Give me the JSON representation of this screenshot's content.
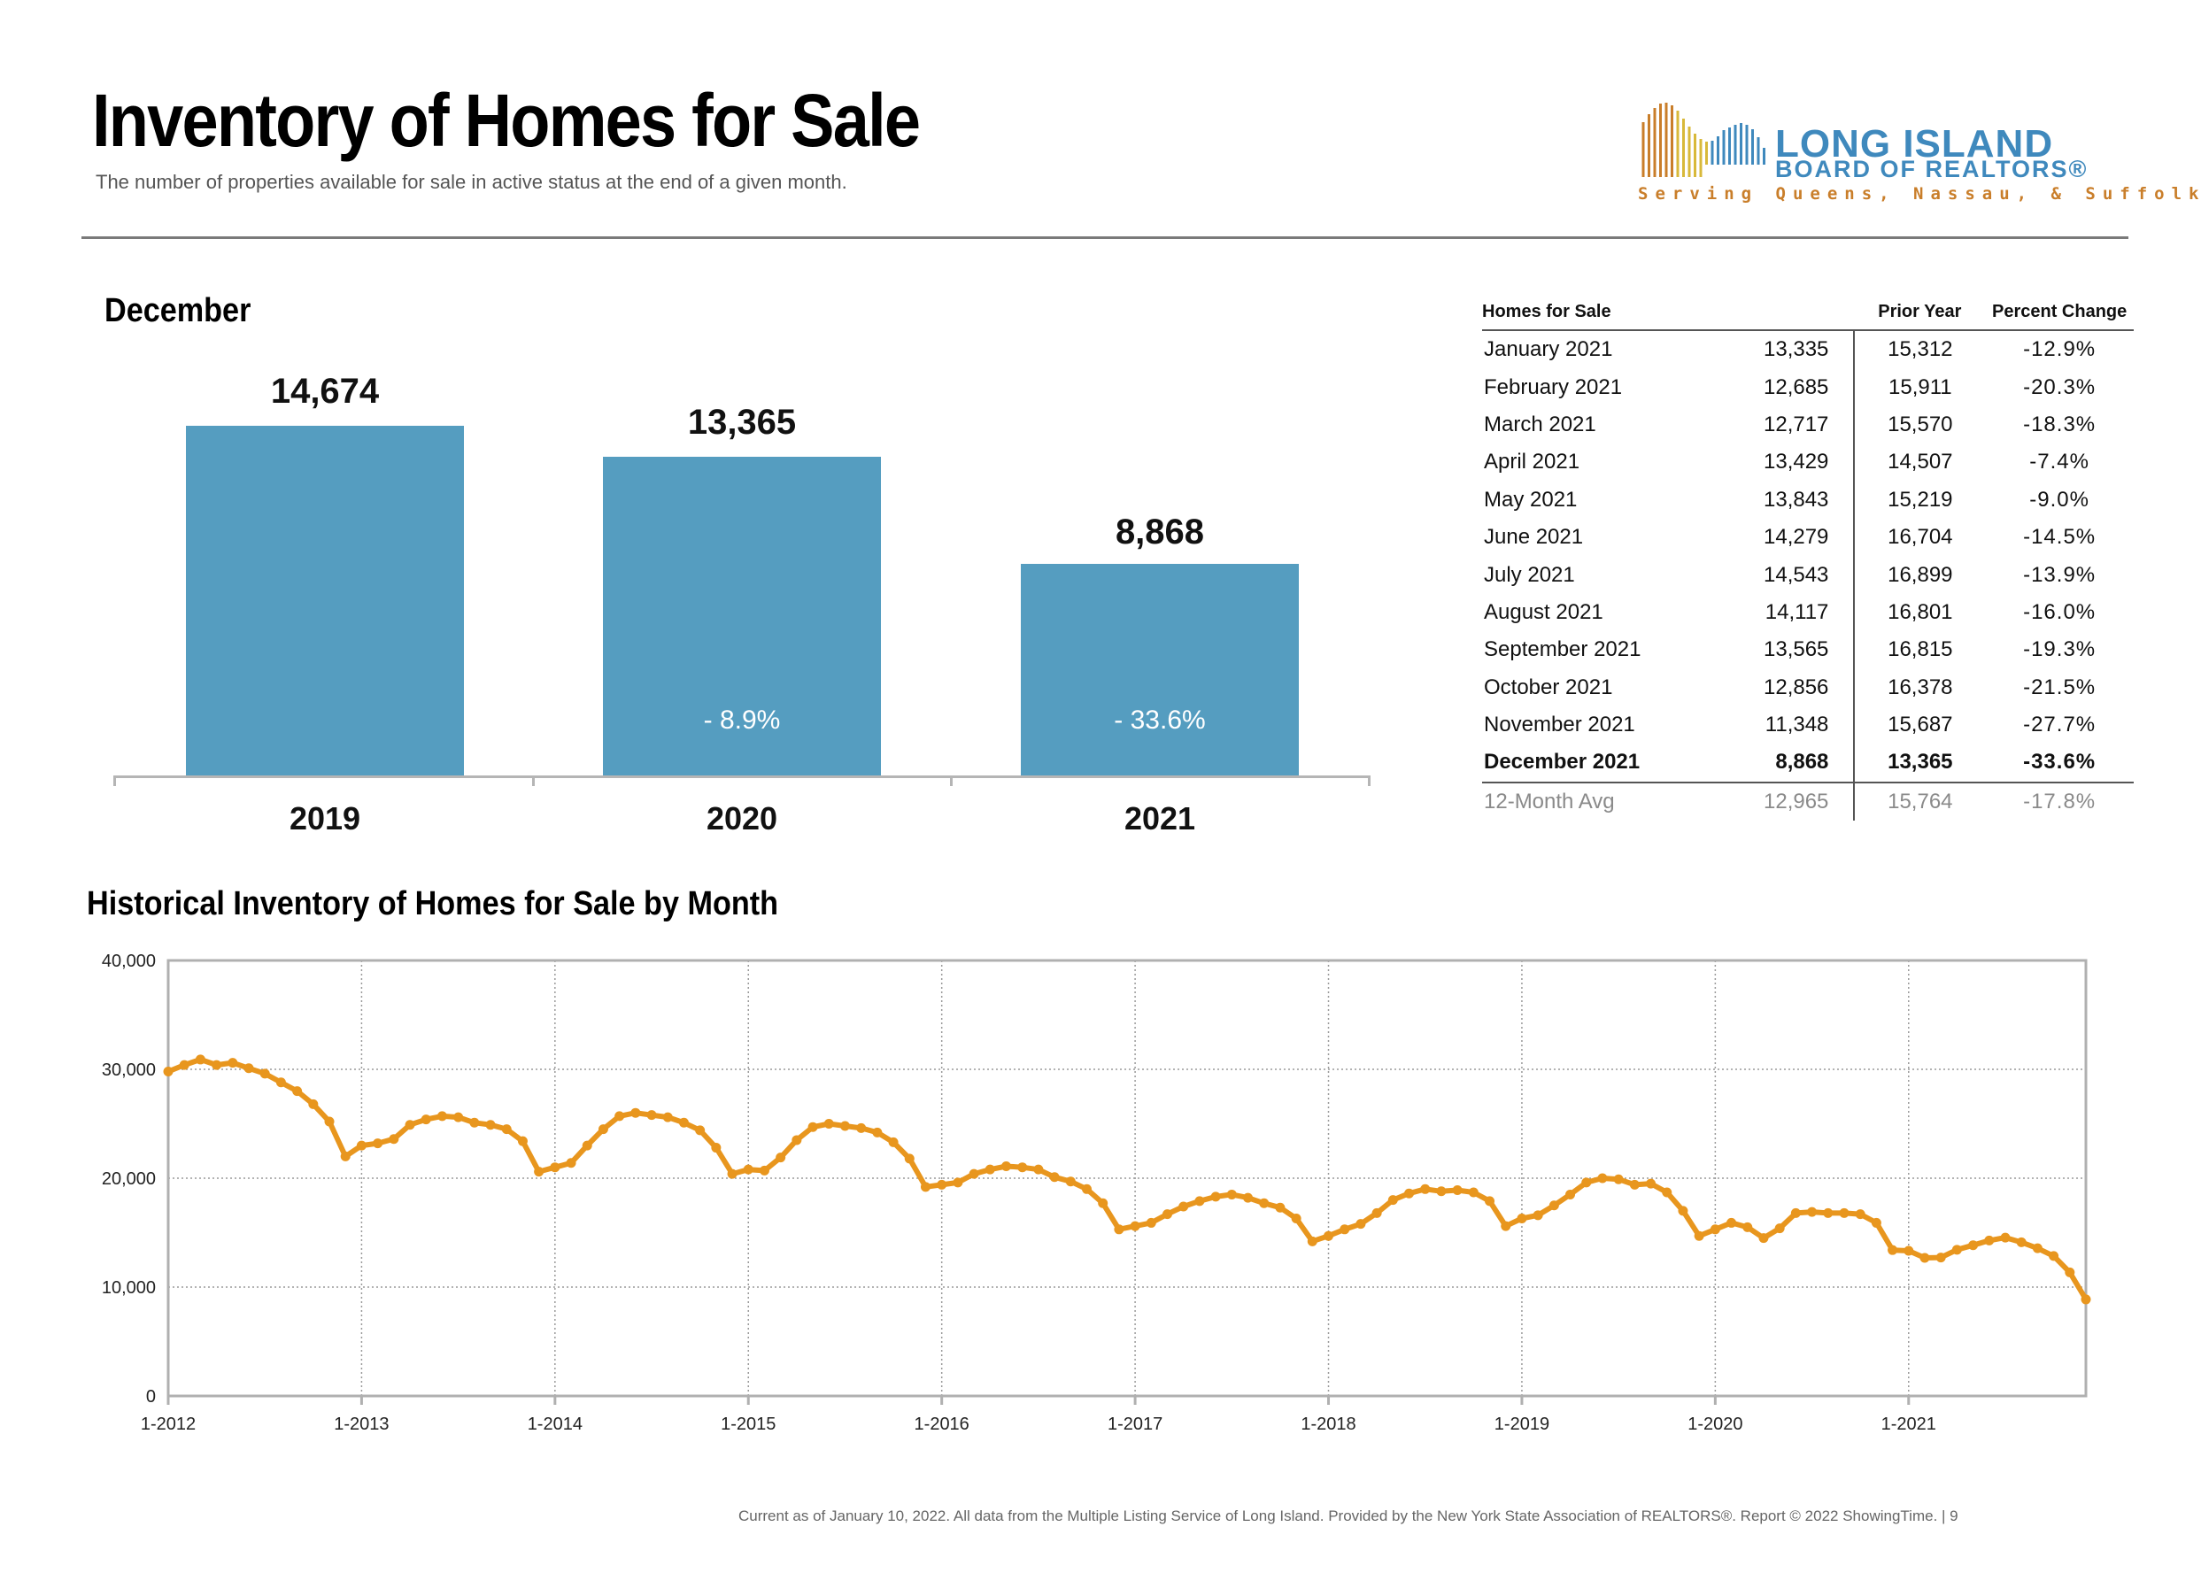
{
  "header": {
    "title": "Inventory of Homes for Sale",
    "subtitle": "The number of properties available for sale in active status at the end of a given month."
  },
  "logo": {
    "line1": "LONG ISLAND",
    "line2": "BOARD OF REALTORS®",
    "line3": "Serving Queens, Nassau, & Suffolk",
    "colors": {
      "blue": "#3f89bd",
      "gold": "#c97e2a",
      "yellow": "#d8b93a"
    }
  },
  "december": {
    "title": "December",
    "bars": [
      {
        "year": "2019",
        "value_label": "14,674",
        "change": ""
      },
      {
        "year": "2020",
        "value_label": "13,365",
        "change": "- 8.9%"
      },
      {
        "year": "2021",
        "value_label": "8,868",
        "change": "- 33.6%"
      }
    ],
    "bar_color": "#559dc0"
  },
  "table": {
    "headers": [
      "Homes for Sale",
      "",
      "Prior Year",
      "Percent Change"
    ],
    "rows": [
      {
        "label": "January 2021",
        "value": "13,335",
        "prior": "15,312",
        "pct": "-12.9%"
      },
      {
        "label": "February 2021",
        "value": "12,685",
        "prior": "15,911",
        "pct": "-20.3%"
      },
      {
        "label": "March 2021",
        "value": "12,717",
        "prior": "15,570",
        "pct": "-18.3%"
      },
      {
        "label": "April 2021",
        "value": "13,429",
        "prior": "14,507",
        "pct": "-7.4%"
      },
      {
        "label": "May 2021",
        "value": "13,843",
        "prior": "15,219",
        "pct": "-9.0%"
      },
      {
        "label": "June 2021",
        "value": "14,279",
        "prior": "16,704",
        "pct": "-14.5%"
      },
      {
        "label": "July 2021",
        "value": "14,543",
        "prior": "16,899",
        "pct": "-13.9%"
      },
      {
        "label": "August 2021",
        "value": "14,117",
        "prior": "16,801",
        "pct": "-16.0%"
      },
      {
        "label": "September 2021",
        "value": "13,565",
        "prior": "16,815",
        "pct": "-19.3%"
      },
      {
        "label": "October 2021",
        "value": "12,856",
        "prior": "16,378",
        "pct": "-21.5%"
      },
      {
        "label": "November 2021",
        "value": "11,348",
        "prior": "15,687",
        "pct": "-27.7%"
      },
      {
        "label": "December 2021",
        "value": "8,868",
        "prior": "13,365",
        "pct": "-33.6%"
      }
    ],
    "avg": {
      "label": "12-Month Avg",
      "value": "12,965",
      "prior": "15,764",
      "pct": "-17.8%"
    }
  },
  "historical": {
    "title": "Historical Inventory of Homes for Sale by Month"
  },
  "chart_data": [
    {
      "type": "bar",
      "title": "December",
      "categories": [
        "2019",
        "2020",
        "2021"
      ],
      "values": [
        14674,
        13365,
        8868
      ],
      "data_labels": [
        "14,674",
        "13,365",
        "8,868"
      ],
      "change_labels": [
        "",
        "- 8.9%",
        "- 33.6%"
      ],
      "color": "#559dc0"
    },
    {
      "type": "line",
      "title": "Historical Inventory of Homes for Sale by Month",
      "x_start": "1-2012",
      "x_tick_labels": [
        "1-2012",
        "1-2013",
        "1-2014",
        "1-2015",
        "1-2016",
        "1-2017",
        "1-2018",
        "1-2019",
        "1-2020",
        "1-2021"
      ],
      "y_tick_labels": [
        "0",
        "10,000",
        "20,000",
        "30,000",
        "40,000"
      ],
      "ylim": [
        0,
        40000
      ],
      "grid": true,
      "line_color": "#e8961e",
      "series": [
        {
          "values": [
            29800,
            30400,
            30900,
            30400,
            30600,
            30100,
            29600,
            28800,
            28000,
            26800,
            25200,
            22000,
            23000,
            23200,
            23600,
            24900,
            25400,
            25700,
            25600,
            25100,
            24900,
            24500,
            23400,
            20600,
            21000,
            21400,
            23000,
            24500,
            25700,
            26000,
            25800,
            25600,
            25100,
            24400,
            22800,
            20400,
            20800,
            20700,
            21900,
            23500,
            24700,
            25000,
            24800,
            24600,
            24200,
            23300,
            21800,
            19200,
            19400,
            19600,
            20400,
            20800,
            21100,
            21000,
            20800,
            20100,
            19700,
            19000,
            17700,
            15300,
            15600,
            15900,
            16700,
            17400,
            17900,
            18300,
            18500,
            18200,
            17700,
            17300,
            16300,
            14200,
            14700,
            15300,
            15800,
            16800,
            18000,
            18600,
            19000,
            18800,
            18900,
            18700,
            17900,
            15600,
            16300,
            16600,
            17500,
            18500,
            19600,
            20000,
            19900,
            19400,
            19500,
            18700,
            17000,
            14700,
            15300,
            15900,
            15500,
            14500,
            15400,
            16800,
            16900,
            16800,
            16800,
            16700,
            15900,
            13400,
            13335,
            12685,
            12717,
            13429,
            13843,
            14279,
            14543,
            14117,
            13565,
            12856,
            11348,
            8868
          ]
        }
      ]
    }
  ],
  "footer": {
    "note": "Current as of January 10, 2022. All data from the Multiple Listing Service of Long Island. Provided by the New York State Association of REALTORS®. Report © 2022 ShowingTime.  |  9"
  }
}
